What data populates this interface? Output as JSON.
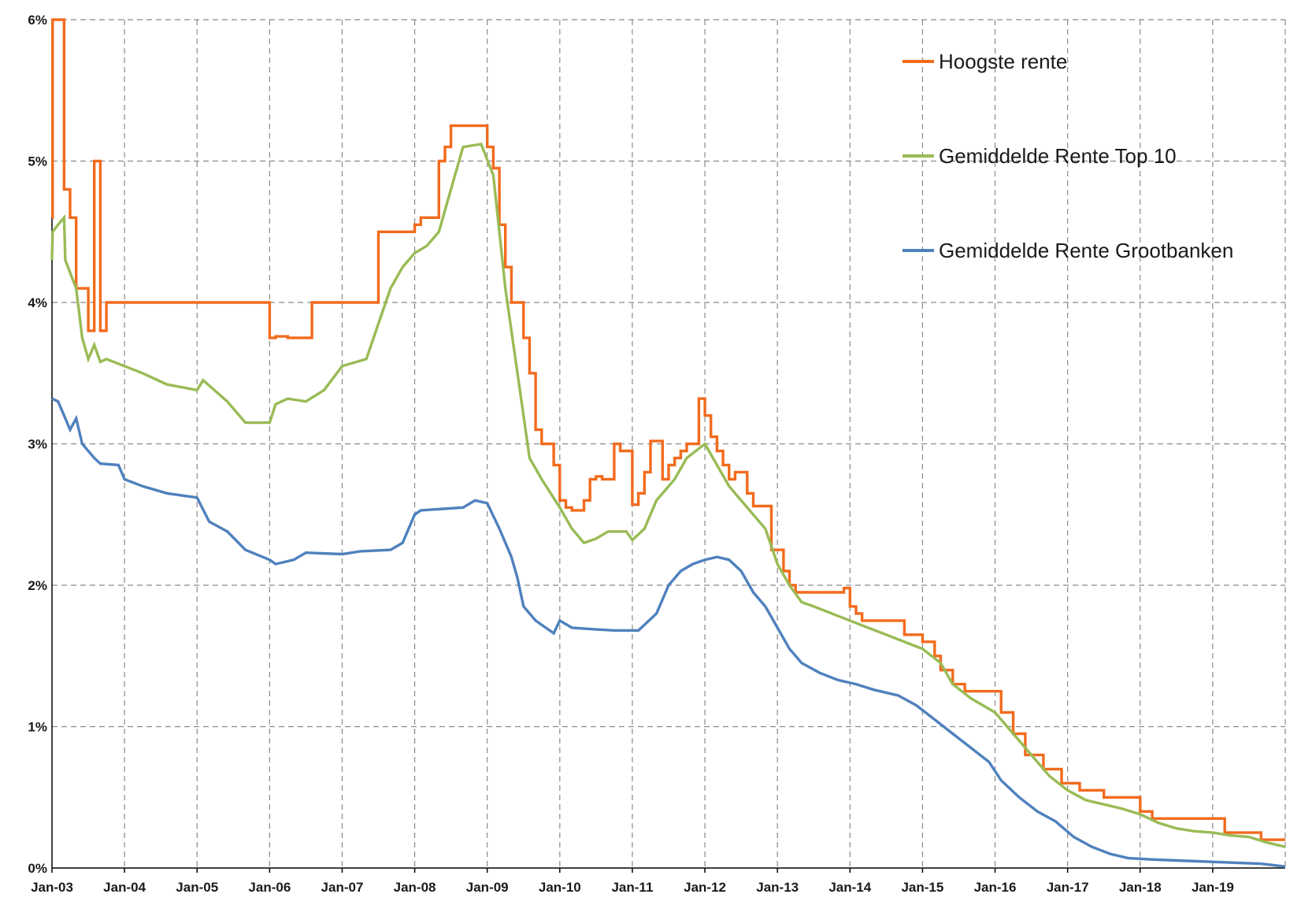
{
  "chart_data": {
    "type": "line",
    "title": "",
    "xlabel": "",
    "ylabel": "",
    "ylim": [
      0,
      6
    ],
    "xlim": [
      "2003-01",
      "2020-01"
    ],
    "grid": true,
    "legend_position": "top-right",
    "y_ticks": [
      "0%",
      "1%",
      "2%",
      "3%",
      "4%",
      "5%",
      "6%"
    ],
    "x_ticks": [
      "Jan-03",
      "Jan-04",
      "Jan-05",
      "Jan-06",
      "Jan-07",
      "Jan-08",
      "Jan-09",
      "Jan-10",
      "Jan-11",
      "Jan-12",
      "Jan-13",
      "Jan-14",
      "Jan-15",
      "Jan-16",
      "Jan-17",
      "Jan-18",
      "Jan-19"
    ],
    "series": [
      {
        "name": "Hoogste rente",
        "color": "#f26b1d",
        "step": true,
        "points": [
          [
            "2003-01",
            4.6
          ],
          [
            "2003-01.1",
            6.0
          ],
          [
            "2003-03",
            4.8
          ],
          [
            "2003-04",
            4.6
          ],
          [
            "2003-05",
            4.1
          ],
          [
            "2003-07",
            3.8
          ],
          [
            "2003-08",
            5.0
          ],
          [
            "2003-09",
            3.8
          ],
          [
            "2003-10",
            4.0
          ],
          [
            "2006-01",
            3.75
          ],
          [
            "2006-02",
            3.76
          ],
          [
            "2006-04",
            3.75
          ],
          [
            "2006-08",
            4.0
          ],
          [
            "2007-07",
            4.5
          ],
          [
            "2008-01",
            4.55
          ],
          [
            "2008-02",
            4.6
          ],
          [
            "2008-05",
            5.0
          ],
          [
            "2008-06",
            5.1
          ],
          [
            "2008-07",
            5.25
          ],
          [
            "2009-01",
            5.1
          ],
          [
            "2009-02",
            4.95
          ],
          [
            "2009-03",
            4.55
          ],
          [
            "2009-04",
            4.25
          ],
          [
            "2009-05",
            4.0
          ],
          [
            "2009-07",
            3.75
          ],
          [
            "2009-08",
            3.5
          ],
          [
            "2009-09",
            3.1
          ],
          [
            "2009-10",
            3.0
          ],
          [
            "2009-12",
            2.85
          ],
          [
            "2010-01",
            2.6
          ],
          [
            "2010-02",
            2.55
          ],
          [
            "2010-03",
            2.53
          ],
          [
            "2010-05",
            2.6
          ],
          [
            "2010-06",
            2.75
          ],
          [
            "2010-07",
            2.77
          ],
          [
            "2010-08",
            2.75
          ],
          [
            "2010-10",
            3.0
          ],
          [
            "2010-11",
            2.95
          ],
          [
            "2011-01",
            2.57
          ],
          [
            "2011-02",
            2.65
          ],
          [
            "2011-03",
            2.8
          ],
          [
            "2011-04",
            3.02
          ],
          [
            "2011-06",
            2.75
          ],
          [
            "2011-07",
            2.85
          ],
          [
            "2011-08",
            2.9
          ],
          [
            "2011-09",
            2.95
          ],
          [
            "2011-10",
            3.0
          ],
          [
            "2011-12",
            3.32
          ],
          [
            "2012-01",
            3.2
          ],
          [
            "2012-02",
            3.05
          ],
          [
            "2012-03",
            2.95
          ],
          [
            "2012-04",
            2.85
          ],
          [
            "2012-05",
            2.75
          ],
          [
            "2012-06",
            2.8
          ],
          [
            "2012-08",
            2.65
          ],
          [
            "2012-09",
            2.56
          ],
          [
            "2012-12",
            2.25
          ],
          [
            "2013-02",
            2.1
          ],
          [
            "2013-03",
            2.0
          ],
          [
            "2013-04",
            1.95
          ],
          [
            "2013-12",
            1.98
          ],
          [
            "2014-01",
            1.85
          ],
          [
            "2014-02",
            1.8
          ],
          [
            "2014-03",
            1.75
          ],
          [
            "2014-10",
            1.65
          ],
          [
            "2015-01",
            1.6
          ],
          [
            "2015-03",
            1.5
          ],
          [
            "2015-04",
            1.4
          ],
          [
            "2015-06",
            1.3
          ],
          [
            "2015-08",
            1.25
          ],
          [
            "2016-02",
            1.1
          ],
          [
            "2016-04",
            0.95
          ],
          [
            "2016-06",
            0.8
          ],
          [
            "2016-09",
            0.7
          ],
          [
            "2016-12",
            0.6
          ],
          [
            "2017-03",
            0.55
          ],
          [
            "2017-07",
            0.5
          ],
          [
            "2018-01",
            0.4
          ],
          [
            "2018-03",
            0.35
          ],
          [
            "2019-03",
            0.25
          ],
          [
            "2019-09",
            0.2
          ],
          [
            "2020-01",
            0.2
          ]
        ]
      },
      {
        "name": "Gemiddelde Rente Top 10",
        "color": "#99bb55",
        "step": false,
        "points": [
          [
            "2003-01",
            4.3
          ],
          [
            "2003-01.1",
            4.5
          ],
          [
            "2003-02",
            4.55
          ],
          [
            "2003-03",
            4.6
          ],
          [
            "2003-03.2",
            4.3
          ],
          [
            "2003-05",
            4.1
          ],
          [
            "2003-06",
            3.75
          ],
          [
            "2003-07",
            3.6
          ],
          [
            "2003-08",
            3.7
          ],
          [
            "2003-09",
            3.58
          ],
          [
            "2003-10",
            3.6
          ],
          [
            "2004-01",
            3.55
          ],
          [
            "2004-04",
            3.5
          ],
          [
            "2004-08",
            3.42
          ],
          [
            "2005-01",
            3.38
          ],
          [
            "2005-02",
            3.45
          ],
          [
            "2005-06",
            3.3
          ],
          [
            "2005-09",
            3.15
          ],
          [
            "2006-01",
            3.15
          ],
          [
            "2006-02",
            3.28
          ],
          [
            "2006-04",
            3.32
          ],
          [
            "2006-07",
            3.3
          ],
          [
            "2006-10",
            3.38
          ],
          [
            "2007-01",
            3.55
          ],
          [
            "2007-05",
            3.6
          ],
          [
            "2007-07",
            3.85
          ],
          [
            "2007-09",
            4.1
          ],
          [
            "2007-11",
            4.25
          ],
          [
            "2008-01",
            4.35
          ],
          [
            "2008-03",
            4.4
          ],
          [
            "2008-05",
            4.5
          ],
          [
            "2008-07",
            4.8
          ],
          [
            "2008-09",
            5.1
          ],
          [
            "2008-12",
            5.12
          ],
          [
            "2009-02",
            4.9
          ],
          [
            "2009-03",
            4.5
          ],
          [
            "2009-04",
            4.1
          ],
          [
            "2009-05",
            3.8
          ],
          [
            "2009-06",
            3.5
          ],
          [
            "2009-07",
            3.2
          ],
          [
            "2009-08",
            2.9
          ],
          [
            "2009-10",
            2.75
          ],
          [
            "2010-01",
            2.55
          ],
          [
            "2010-03",
            2.4
          ],
          [
            "2010-05",
            2.3
          ],
          [
            "2010-07",
            2.33
          ],
          [
            "2010-09",
            2.38
          ],
          [
            "2010-12",
            2.38
          ],
          [
            "2011-01",
            2.32
          ],
          [
            "2011-03",
            2.4
          ],
          [
            "2011-05",
            2.6
          ],
          [
            "2011-08",
            2.75
          ],
          [
            "2011-10",
            2.9
          ],
          [
            "2012-01",
            3.0
          ],
          [
            "2012-03",
            2.85
          ],
          [
            "2012-05",
            2.7
          ],
          [
            "2012-07",
            2.6
          ],
          [
            "2012-09",
            2.5
          ],
          [
            "2012-11",
            2.4
          ],
          [
            "2013-01",
            2.15
          ],
          [
            "2013-03",
            2.0
          ],
          [
            "2013-05",
            1.88
          ],
          [
            "2013-07",
            1.85
          ],
          [
            "2013-10",
            1.8
          ],
          [
            "2014-01",
            1.75
          ],
          [
            "2014-04",
            1.7
          ],
          [
            "2014-07",
            1.65
          ],
          [
            "2014-10",
            1.6
          ],
          [
            "2015-01",
            1.55
          ],
          [
            "2015-04",
            1.45
          ],
          [
            "2015-06",
            1.3
          ],
          [
            "2015-09",
            1.2
          ],
          [
            "2016-01",
            1.1
          ],
          [
            "2016-04",
            0.95
          ],
          [
            "2016-07",
            0.8
          ],
          [
            "2016-10",
            0.65
          ],
          [
            "2017-01",
            0.55
          ],
          [
            "2017-04",
            0.48
          ],
          [
            "2017-07",
            0.45
          ],
          [
            "2017-10",
            0.42
          ],
          [
            "2018-01",
            0.38
          ],
          [
            "2018-04",
            0.32
          ],
          [
            "2018-07",
            0.28
          ],
          [
            "2018-10",
            0.26
          ],
          [
            "2019-01",
            0.25
          ],
          [
            "2019-04",
            0.23
          ],
          [
            "2019-07",
            0.22
          ],
          [
            "2019-10",
            0.18
          ],
          [
            "2020-01",
            0.15
          ]
        ]
      },
      {
        "name": "Gemiddelde Rente Grootbanken",
        "color": "#4f81bd",
        "step": false,
        "points": [
          [
            "2003-01",
            3.32
          ],
          [
            "2003-02",
            3.3
          ],
          [
            "2003-03",
            3.2
          ],
          [
            "2003-04",
            3.1
          ],
          [
            "2003-05",
            3.18
          ],
          [
            "2003-06",
            3.0
          ],
          [
            "2003-08",
            2.9
          ],
          [
            "2003-09",
            2.86
          ],
          [
            "2003-12",
            2.85
          ],
          [
            "2004-01",
            2.75
          ],
          [
            "2004-04",
            2.7
          ],
          [
            "2004-08",
            2.65
          ],
          [
            "2005-01",
            2.62
          ],
          [
            "2005-03",
            2.45
          ],
          [
            "2005-06",
            2.38
          ],
          [
            "2005-09",
            2.25
          ],
          [
            "2006-01",
            2.18
          ],
          [
            "2006-02",
            2.15
          ],
          [
            "2006-05",
            2.18
          ],
          [
            "2006-07",
            2.23
          ],
          [
            "2007-01",
            2.22
          ],
          [
            "2007-04",
            2.24
          ],
          [
            "2007-09",
            2.25
          ],
          [
            "2007-11",
            2.3
          ],
          [
            "2008-01",
            2.5
          ],
          [
            "2008-02",
            2.53
          ],
          [
            "2008-09",
            2.55
          ],
          [
            "2008-11",
            2.6
          ],
          [
            "2009-01",
            2.58
          ],
          [
            "2009-03",
            2.4
          ],
          [
            "2009-05",
            2.2
          ],
          [
            "2009-06",
            2.05
          ],
          [
            "2009-07",
            1.85
          ],
          [
            "2009-09",
            1.75
          ],
          [
            "2009-12",
            1.66
          ],
          [
            "2010-01",
            1.75
          ],
          [
            "2010-03",
            1.7
          ],
          [
            "2010-06",
            1.69
          ],
          [
            "2010-10",
            1.68
          ],
          [
            "2011-02",
            1.68
          ],
          [
            "2011-03",
            1.72
          ],
          [
            "2011-05",
            1.8
          ],
          [
            "2011-06",
            1.9
          ],
          [
            "2011-07",
            2.0
          ],
          [
            "2011-09",
            2.1
          ],
          [
            "2011-11",
            2.15
          ],
          [
            "2012-01",
            2.18
          ],
          [
            "2012-03",
            2.2
          ],
          [
            "2012-05",
            2.18
          ],
          [
            "2012-07",
            2.1
          ],
          [
            "2012-09",
            1.95
          ],
          [
            "2012-11",
            1.85
          ],
          [
            "2013-01",
            1.7
          ],
          [
            "2013-03",
            1.55
          ],
          [
            "2013-05",
            1.45
          ],
          [
            "2013-08",
            1.38
          ],
          [
            "2013-11",
            1.33
          ],
          [
            "2014-02",
            1.3
          ],
          [
            "2014-05",
            1.26
          ],
          [
            "2014-09",
            1.22
          ],
          [
            "2014-12",
            1.15
          ],
          [
            "2015-03",
            1.05
          ],
          [
            "2015-06",
            0.95
          ],
          [
            "2015-09",
            0.85
          ],
          [
            "2015-12",
            0.75
          ],
          [
            "2016-02",
            0.62
          ],
          [
            "2016-05",
            0.5
          ],
          [
            "2016-08",
            0.4
          ],
          [
            "2016-11",
            0.33
          ],
          [
            "2017-02",
            0.22
          ],
          [
            "2017-05",
            0.15
          ],
          [
            "2017-08",
            0.1
          ],
          [
            "2017-11",
            0.07
          ],
          [
            "2018-03",
            0.06
          ],
          [
            "2018-09",
            0.05
          ],
          [
            "2019-03",
            0.04
          ],
          [
            "2019-09",
            0.03
          ],
          [
            "2020-01",
            0.01
          ]
        ]
      }
    ]
  }
}
